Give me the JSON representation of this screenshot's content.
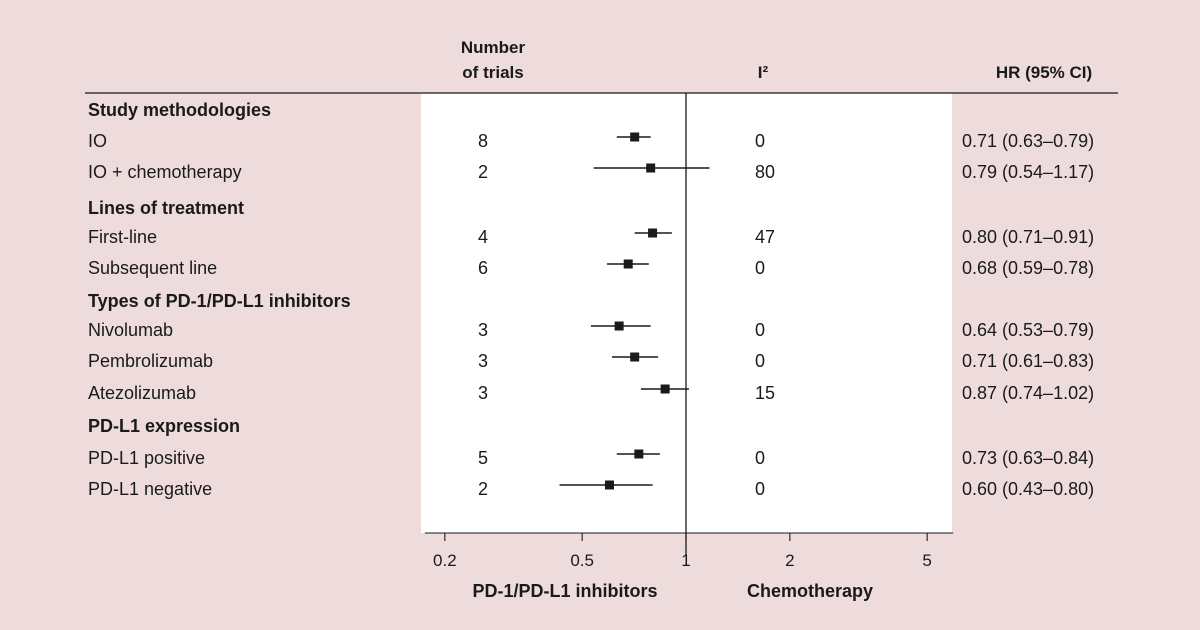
{
  "chart_data": {
    "type": "forest",
    "columns": {
      "trials_header_line1": "Number",
      "trials_header_line2": "of trials",
      "i2_header": "I²",
      "hr_header": "HR (95% CI)"
    },
    "sections": [
      {
        "title": "Study methodologies",
        "rows": [
          {
            "label": "IO",
            "trials": "8",
            "i2": "0",
            "hr": 0.71,
            "lo": 0.63,
            "hi": 0.79,
            "hr_text": "0.71 (0.63–0.79)"
          },
          {
            "label": "IO + chemotherapy",
            "trials": "2",
            "i2": "80",
            "hr": 0.79,
            "lo": 0.54,
            "hi": 1.17,
            "hr_text": "0.79 (0.54–1.17)"
          }
        ]
      },
      {
        "title": "Lines of treatment",
        "rows": [
          {
            "label": "First-line",
            "trials": "4",
            "i2": "47",
            "hr": 0.8,
            "lo": 0.71,
            "hi": 0.91,
            "hr_text": "0.80 (0.71–0.91)"
          },
          {
            "label": "Subsequent line",
            "trials": "6",
            "i2": "0",
            "hr": 0.68,
            "lo": 0.59,
            "hi": 0.78,
            "hr_text": "0.68 (0.59–0.78)"
          }
        ]
      },
      {
        "title": "Types of PD-1/PD-L1 inhibitors",
        "rows": [
          {
            "label": "Nivolumab",
            "trials": "3",
            "i2": "0",
            "hr": 0.64,
            "lo": 0.53,
            "hi": 0.79,
            "hr_text": "0.64 (0.53–0.79)"
          },
          {
            "label": "Pembrolizumab",
            "trials": "3",
            "i2": "0",
            "hr": 0.71,
            "lo": 0.61,
            "hi": 0.83,
            "hr_text": "0.71 (0.61–0.83)"
          },
          {
            "label": "Atezolizumab",
            "trials": "3",
            "i2": "15",
            "hr": 0.87,
            "lo": 0.74,
            "hi": 1.02,
            "hr_text": "0.87 (0.74–1.02)"
          }
        ]
      },
      {
        "title": "PD-L1 expression",
        "rows": [
          {
            "label": "PD-L1 positive",
            "trials": "5",
            "i2": "0",
            "hr": 0.73,
            "lo": 0.63,
            "hi": 0.84,
            "hr_text": "0.73 (0.63–0.84)"
          },
          {
            "label": "PD-L1 negative",
            "trials": "2",
            "i2": "0",
            "hr": 0.6,
            "lo": 0.43,
            "hi": 0.8,
            "hr_text": "0.60 (0.43–0.80)"
          }
        ]
      }
    ],
    "x_axis": {
      "scale": "log",
      "ticks": [
        0.2,
        0.5,
        1,
        2,
        5
      ],
      "tick_labels": [
        "0.2",
        "0.5",
        "1",
        "2",
        "5"
      ],
      "reference_line": 1,
      "left_label": "PD-1/PD-L1 inhibitors",
      "right_label": "Chemotherapy"
    },
    "colors": {
      "background": "#eedcdc",
      "plot_panel": "#ffffff",
      "ink": "#1a1a1a"
    }
  }
}
